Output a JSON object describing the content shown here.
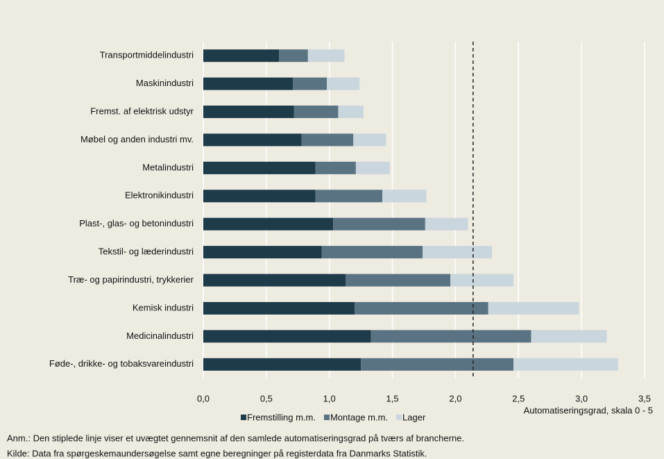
{
  "chart_data": {
    "type": "stacked_barh",
    "categories": [
      "Transportmiddelindustri",
      "Maskinindustri",
      "Fremst. af elektrisk udstyr",
      "Møbel og anden industri mv.",
      "Metalindustri",
      "Elektronikindustri",
      "Plast-, glas- og betonindustri",
      "Tekstil- og læderindustri",
      "Træ- og papirindustri, trykkerier",
      "Kemisk industri",
      "Medicinalindustri",
      "Føde-, drikke- og tobaksvareindustri"
    ],
    "series": [
      {
        "name": "Fremstilling m.m.",
        "color": "#1d3b49",
        "values": [
          0.6,
          0.71,
          0.72,
          0.78,
          0.89,
          0.89,
          1.03,
          0.94,
          1.13,
          1.2,
          1.33,
          1.25
        ]
      },
      {
        "name": "Montage m.m.",
        "color": "#5a7382",
        "values": [
          0.23,
          0.27,
          0.35,
          0.41,
          0.32,
          0.53,
          0.73,
          0.8,
          0.83,
          1.06,
          1.27,
          1.21
        ]
      },
      {
        "name": "Lager",
        "color": "#c9d6dd",
        "values": [
          0.29,
          0.26,
          0.2,
          0.26,
          0.27,
          0.35,
          0.34,
          0.55,
          0.5,
          0.72,
          0.6,
          0.83
        ]
      }
    ],
    "xlabel": "Automatiseringsgrad, skala 0 - 5",
    "xlim": [
      0,
      3.5
    ],
    "xticks": [
      {
        "value": 0,
        "label": "0,0"
      },
      {
        "value": 0.5,
        "label": "0,5"
      },
      {
        "value": 1,
        "label": "1,0"
      },
      {
        "value": 1.5,
        "label": "1,5"
      },
      {
        "value": 2,
        "label": "2,0"
      },
      {
        "value": 2.5,
        "label": "2,5"
      },
      {
        "value": 3,
        "label": "3,0"
      },
      {
        "value": 3.5,
        "label": "3,5"
      }
    ],
    "grid": true,
    "reference_line": 2.14,
    "notes": [
      "Anm.: Den stiplede linje viser et uvægtet gennemsnit af den samlede automatiseringsgrad på tværs af brancherne.",
      "Kilde: Data fra spørgeskemaundersøgelse samt egne beregninger på registerdata fra Danmarks Statistik."
    ]
  }
}
